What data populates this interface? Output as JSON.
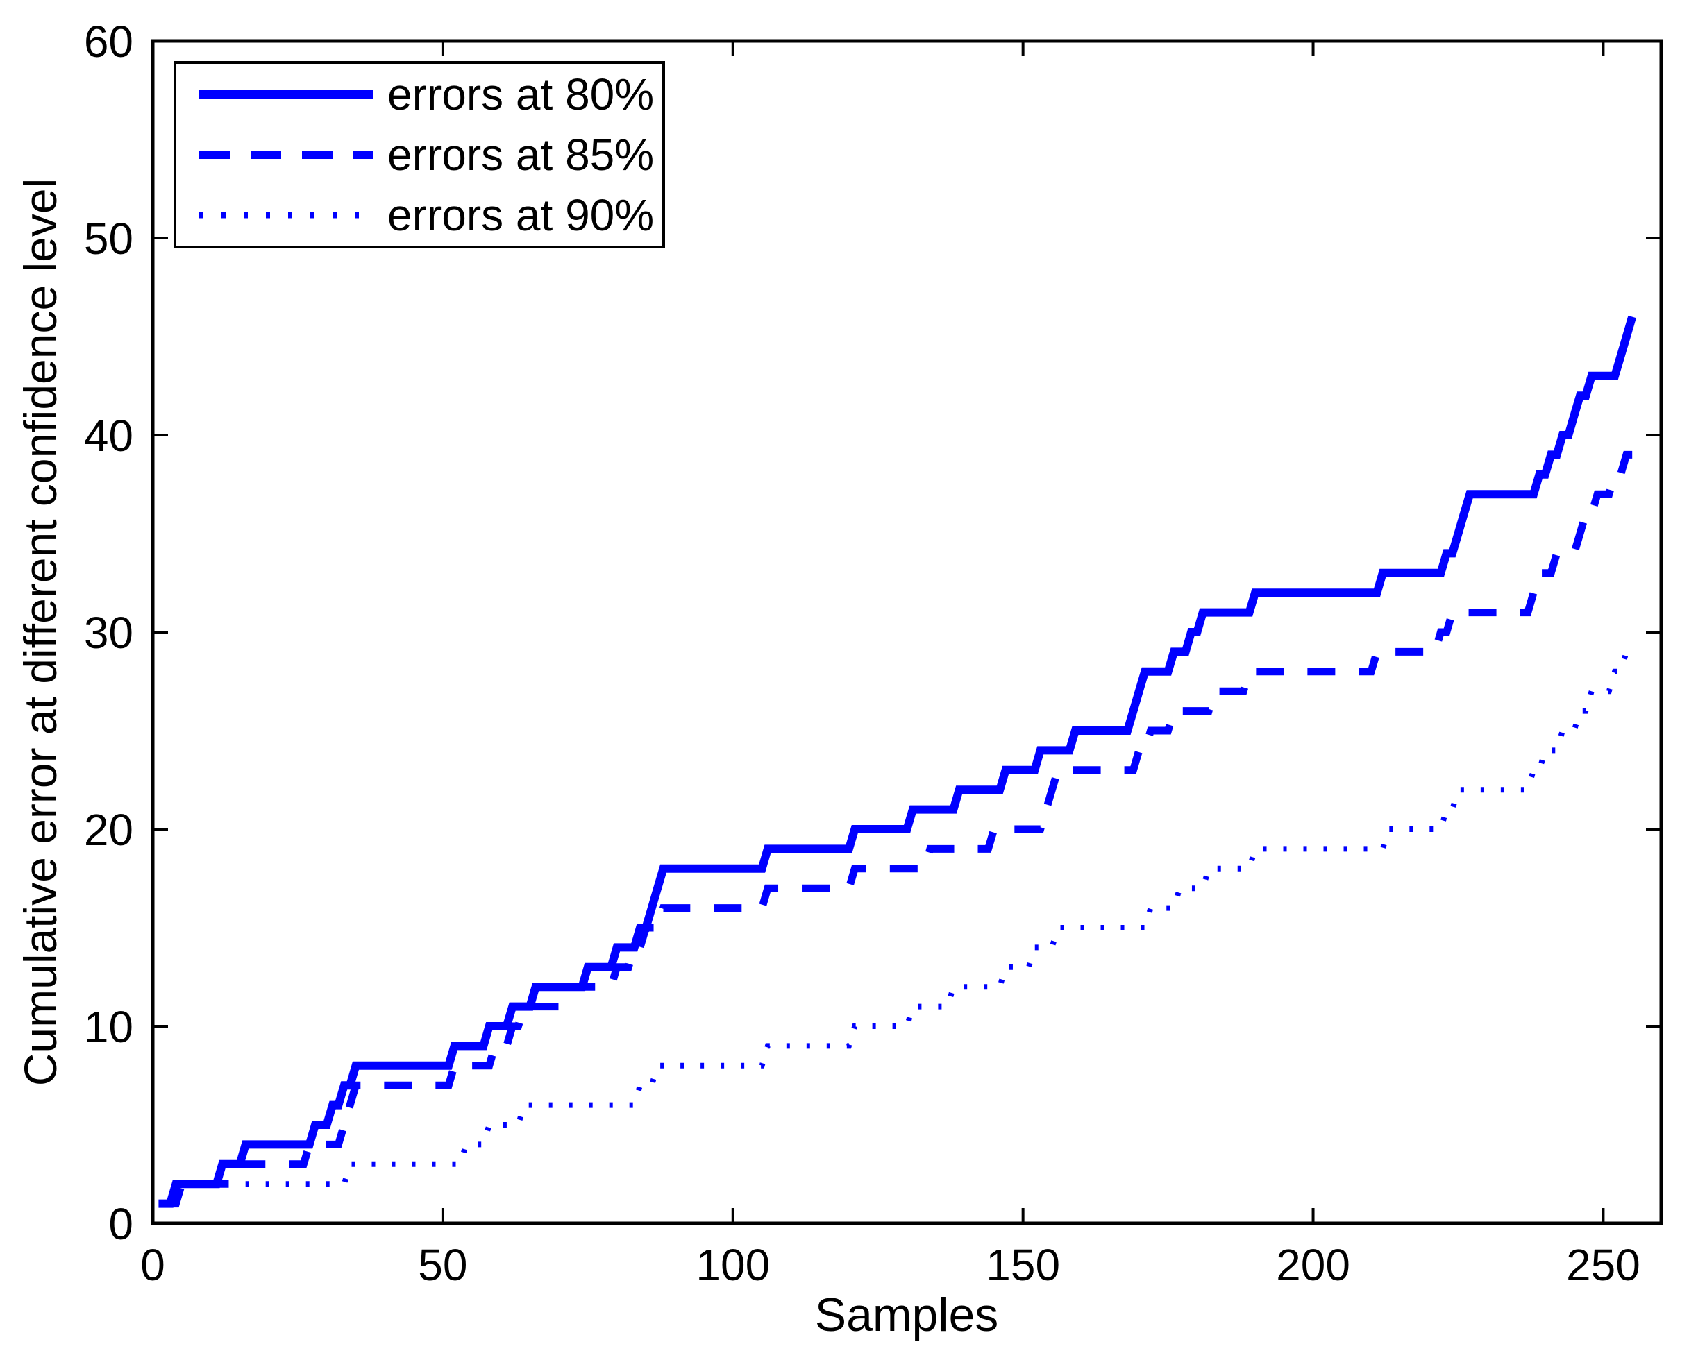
{
  "figure": {
    "background": "#ffffff",
    "axis_color": "#000000",
    "series_color": "#0000ff"
  },
  "legend": {
    "position": "top-left",
    "items": [
      {
        "label": "errors at 80%",
        "style": "solid"
      },
      {
        "label": "errors at 85%",
        "style": "dashed"
      },
      {
        "label": "errors at 90%",
        "style": "dotted"
      }
    ]
  },
  "chart_data": {
    "type": "line",
    "title": "",
    "xlabel": "Samples",
    "ylabel": "Cumulative error at different confidence level",
    "xlim": [
      0,
      260
    ],
    "ylim": [
      0,
      60
    ],
    "x_ticks": [
      0,
      50,
      100,
      150,
      200,
      250
    ],
    "y_ticks": [
      0,
      10,
      20,
      30,
      40,
      50,
      60
    ],
    "grid": false,
    "legend_position": "top-left",
    "end_sample": 255,
    "series": [
      {
        "name": "errors at 80%",
        "style": "solid",
        "color": "#0000ff",
        "breakpoints": [
          [
            1,
            1
          ],
          [
            4,
            2
          ],
          [
            12,
            3
          ],
          [
            16,
            4
          ],
          [
            28,
            5
          ],
          [
            31,
            6
          ],
          [
            33,
            7
          ],
          [
            35,
            8
          ],
          [
            52,
            9
          ],
          [
            58,
            10
          ],
          [
            62,
            11
          ],
          [
            66,
            12
          ],
          [
            75,
            13
          ],
          [
            80,
            14
          ],
          [
            84,
            15
          ],
          [
            86,
            16
          ],
          [
            87,
            17
          ],
          [
            88,
            18
          ],
          [
            106,
            19
          ],
          [
            121,
            20
          ],
          [
            131,
            21
          ],
          [
            139,
            22
          ],
          [
            147,
            23
          ],
          [
            153,
            24
          ],
          [
            159,
            25
          ],
          [
            169,
            26
          ],
          [
            170,
            27
          ],
          [
            171,
            28
          ],
          [
            176,
            29
          ],
          [
            179,
            30
          ],
          [
            181,
            31
          ],
          [
            190,
            32
          ],
          [
            212,
            33
          ],
          [
            223,
            34
          ],
          [
            225,
            35
          ],
          [
            226,
            36
          ],
          [
            227,
            37
          ],
          [
            239,
            38
          ],
          [
            241,
            39
          ],
          [
            243,
            40
          ],
          [
            245,
            41
          ],
          [
            246,
            42
          ],
          [
            248,
            43
          ],
          [
            253,
            44
          ],
          [
            254,
            45
          ],
          [
            255,
            46
          ]
        ]
      },
      {
        "name": "errors at 85%",
        "style": "dashed",
        "color": "#0000ff",
        "breakpoints": [
          [
            2,
            1
          ],
          [
            5,
            2
          ],
          [
            15,
            3
          ],
          [
            27,
            4
          ],
          [
            33,
            5
          ],
          [
            34,
            6
          ],
          [
            35,
            7
          ],
          [
            52,
            8
          ],
          [
            59,
            9
          ],
          [
            62,
            10
          ],
          [
            64,
            11
          ],
          [
            72,
            12
          ],
          [
            80,
            13
          ],
          [
            83,
            14
          ],
          [
            85,
            15
          ],
          [
            88,
            16
          ],
          [
            106,
            17
          ],
          [
            121,
            18
          ],
          [
            134,
            19
          ],
          [
            145,
            20
          ],
          [
            154,
            21
          ],
          [
            155,
            22
          ],
          [
            156,
            23
          ],
          [
            170,
            24
          ],
          [
            172,
            25
          ],
          [
            176,
            26
          ],
          [
            183,
            27
          ],
          [
            189,
            28
          ],
          [
            211,
            29
          ],
          [
            222,
            30
          ],
          [
            224,
            31
          ],
          [
            238,
            32
          ],
          [
            239,
            33
          ],
          [
            242,
            34
          ],
          [
            246,
            35
          ],
          [
            247,
            36
          ],
          [
            249,
            37
          ],
          [
            252,
            38
          ],
          [
            254,
            39
          ]
        ]
      },
      {
        "name": "errors at 90%",
        "style": "dotted",
        "color": "#0000ff",
        "breakpoints": [
          [
            16,
            2
          ],
          [
            34,
            3
          ],
          [
            54,
            4
          ],
          [
            58,
            5
          ],
          [
            64,
            6
          ],
          [
            84,
            7
          ],
          [
            87,
            8
          ],
          [
            106,
            9
          ],
          [
            121,
            10
          ],
          [
            131,
            11
          ],
          [
            138,
            12
          ],
          [
            147,
            13
          ],
          [
            152,
            14
          ],
          [
            156,
            15
          ],
          [
            172,
            16
          ],
          [
            177,
            17
          ],
          [
            182,
            18
          ],
          [
            190,
            19
          ],
          [
            213,
            20
          ],
          [
            223,
            21
          ],
          [
            225,
            22
          ],
          [
            238,
            23
          ],
          [
            240,
            24
          ],
          [
            243,
            25
          ],
          [
            246,
            26
          ],
          [
            248,
            27
          ],
          [
            252,
            28
          ],
          [
            254,
            29
          ]
        ]
      }
    ]
  }
}
